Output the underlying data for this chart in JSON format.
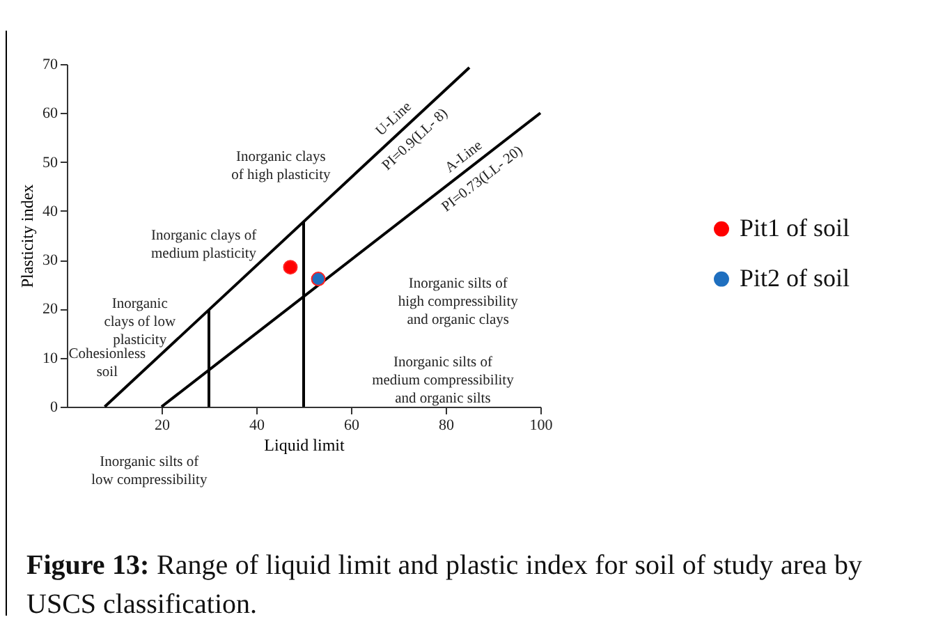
{
  "chart_data": {
    "type": "line",
    "xlabel": "Liquid limit",
    "ylabel": "Plasticity index",
    "xlim": [
      0,
      100
    ],
    "ylim": [
      0,
      70
    ],
    "xticks": [
      20,
      40,
      60,
      80,
      100
    ],
    "yticks": [
      0,
      10,
      20,
      30,
      40,
      50,
      60,
      70
    ],
    "grid": false,
    "legend": "right",
    "series": [
      {
        "type": "line",
        "color": "#000000",
        "x": [
          8,
          85
        ],
        "values": [
          0,
          69.3
        ]
      },
      {
        "type": "line",
        "color": "#000000",
        "x": [
          20,
          100
        ],
        "values": [
          0,
          60
        ]
      },
      {
        "type": "line",
        "color": "#000000",
        "x": [
          30,
          30
        ],
        "values": [
          0,
          19.8
        ]
      },
      {
        "type": "line",
        "color": "#000000",
        "x": [
          50,
          50
        ],
        "values": [
          0,
          37.8
        ]
      },
      {
        "type": "scatter",
        "name": "Pit1 of soil",
        "color": "#ff0000",
        "x": [
          47.2
        ],
        "values": [
          28.5
        ]
      },
      {
        "type": "scatter",
        "name": "Pit2 of soil",
        "color": "#1f6fbf",
        "x": [
          53.1
        ],
        "values": [
          26.1
        ]
      }
    ],
    "annotations": [
      "Inorganic clays\nof high plasticity",
      "Inorganic clays of\nmedium plasticity",
      "Inorganic\nclays of low\nplasticity",
      "Cohesionless\nsoil",
      "Inorganic silts of\nhigh compressibility\nand organic clays",
      "Inorganic silts of\nmedium compressibility\nand organic silts",
      "Inorganic silts of\nlow compressibility",
      "U-Line",
      "PI=0.9(LL- 8)",
      "A-Line",
      "PI=0.73(LL- 20)",
      "Figure 13: Range of liquid limit and plastic index for soil of study area by USCS classification."
    ]
  }
}
